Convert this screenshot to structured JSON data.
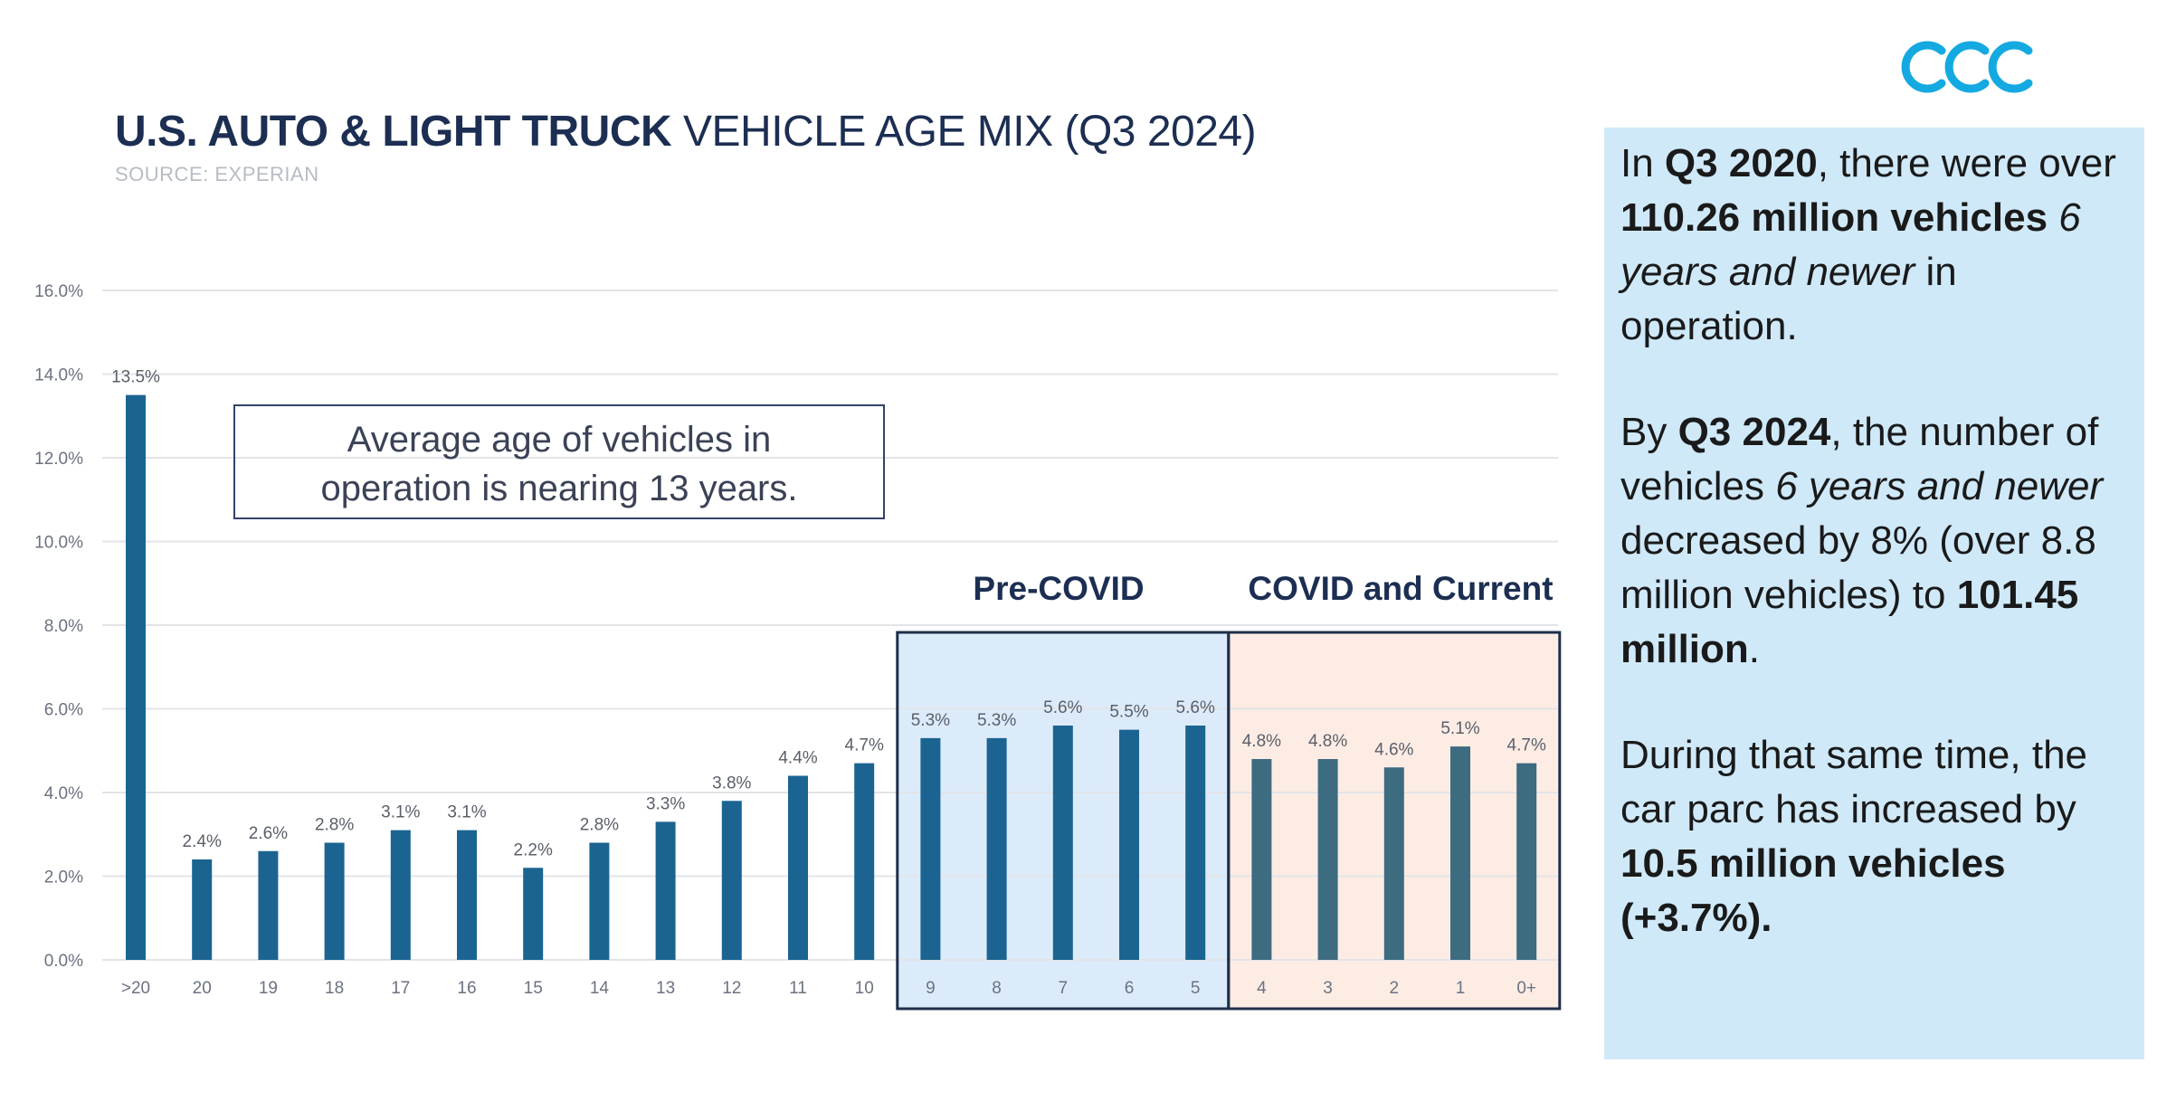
{
  "header": {
    "title_bold": "U.S. AUTO & LIGHT TRUCK",
    "title_light": "VEHICLE AGE MIX (Q3 2024)",
    "source": "SOURCE: EXPERIAN"
  },
  "callout": {
    "line1": "Average age of vehicles in",
    "line2": "operation is nearing 13 years."
  },
  "sections": {
    "pre_covid": "Pre-COVID",
    "covid_current": "COVID and Current"
  },
  "colors": {
    "bar_old": "#1b6491",
    "bar_recent": "#3d6b80",
    "grid": "#e2e4e8",
    "pre_covid_fill": "#dcebfa",
    "covid_fill": "#fdece4",
    "section_border": "#1e2f4a",
    "info_bg": "#cfe9f9"
  },
  "chart_data": {
    "type": "bar",
    "title": "U.S. AUTO & LIGHT TRUCK VEHICLE AGE MIX (Q3 2024)",
    "xlabel": "",
    "ylabel": "",
    "ylim": [
      0,
      16
    ],
    "yticks": [
      "0.0%",
      "2.0%",
      "4.0%",
      "6.0%",
      "8.0%",
      "10.0%",
      "12.0%",
      "14.0%",
      "16.0%"
    ],
    "grid": true,
    "categories": [
      ">20",
      "20",
      "19",
      "18",
      "17",
      "16",
      "15",
      "14",
      "13",
      "12",
      "11",
      "10",
      "9",
      "8",
      "7",
      "6",
      "5",
      "4",
      "3",
      "2",
      "1",
      "0+"
    ],
    "values": [
      13.5,
      2.4,
      2.6,
      2.8,
      3.1,
      3.1,
      2.2,
      2.8,
      3.3,
      3.8,
      4.4,
      4.7,
      5.3,
      5.3,
      5.6,
      5.5,
      5.6,
      4.8,
      4.8,
      4.6,
      5.1,
      4.7
    ],
    "labels": [
      "13.5%",
      "2.4%",
      "2.6%",
      "2.8%",
      "3.1%",
      "3.1%",
      "2.2%",
      "2.8%",
      "3.3%",
      "3.8%",
      "4.4%",
      "4.7%",
      "5.3%",
      "5.3%",
      "5.6%",
      "5.5%",
      "5.6%",
      "4.8%",
      "4.8%",
      "4.6%",
      "5.1%",
      "4.7%"
    ],
    "regions": [
      {
        "name": "Pre-COVID",
        "categories": [
          "9",
          "8",
          "7",
          "6",
          "5"
        ]
      },
      {
        "name": "COVID and Current",
        "categories": [
          "4",
          "3",
          "2",
          "1",
          "0+"
        ]
      }
    ]
  },
  "info": {
    "p1": {
      "t1": "In ",
      "b1": "Q3 2020",
      "t2": ", there were over ",
      "b2": "110.26 million vehicles",
      "t3": " ",
      "i1": "6 years and newer",
      "t4": " in operation."
    },
    "p2": {
      "t1": "By ",
      "b1": "Q3 2024",
      "t2": ", the number of vehicles ",
      "i1": "6 years and newer",
      "t3": " decreased by 8% (over 8.8 million vehicles) to ",
      "b2": "101.45 million",
      "t4": "."
    },
    "p3": {
      "t1": "During that same time, the car parc has increased by ",
      "b1": "10.5 million vehicles (+3.7%)."
    }
  }
}
